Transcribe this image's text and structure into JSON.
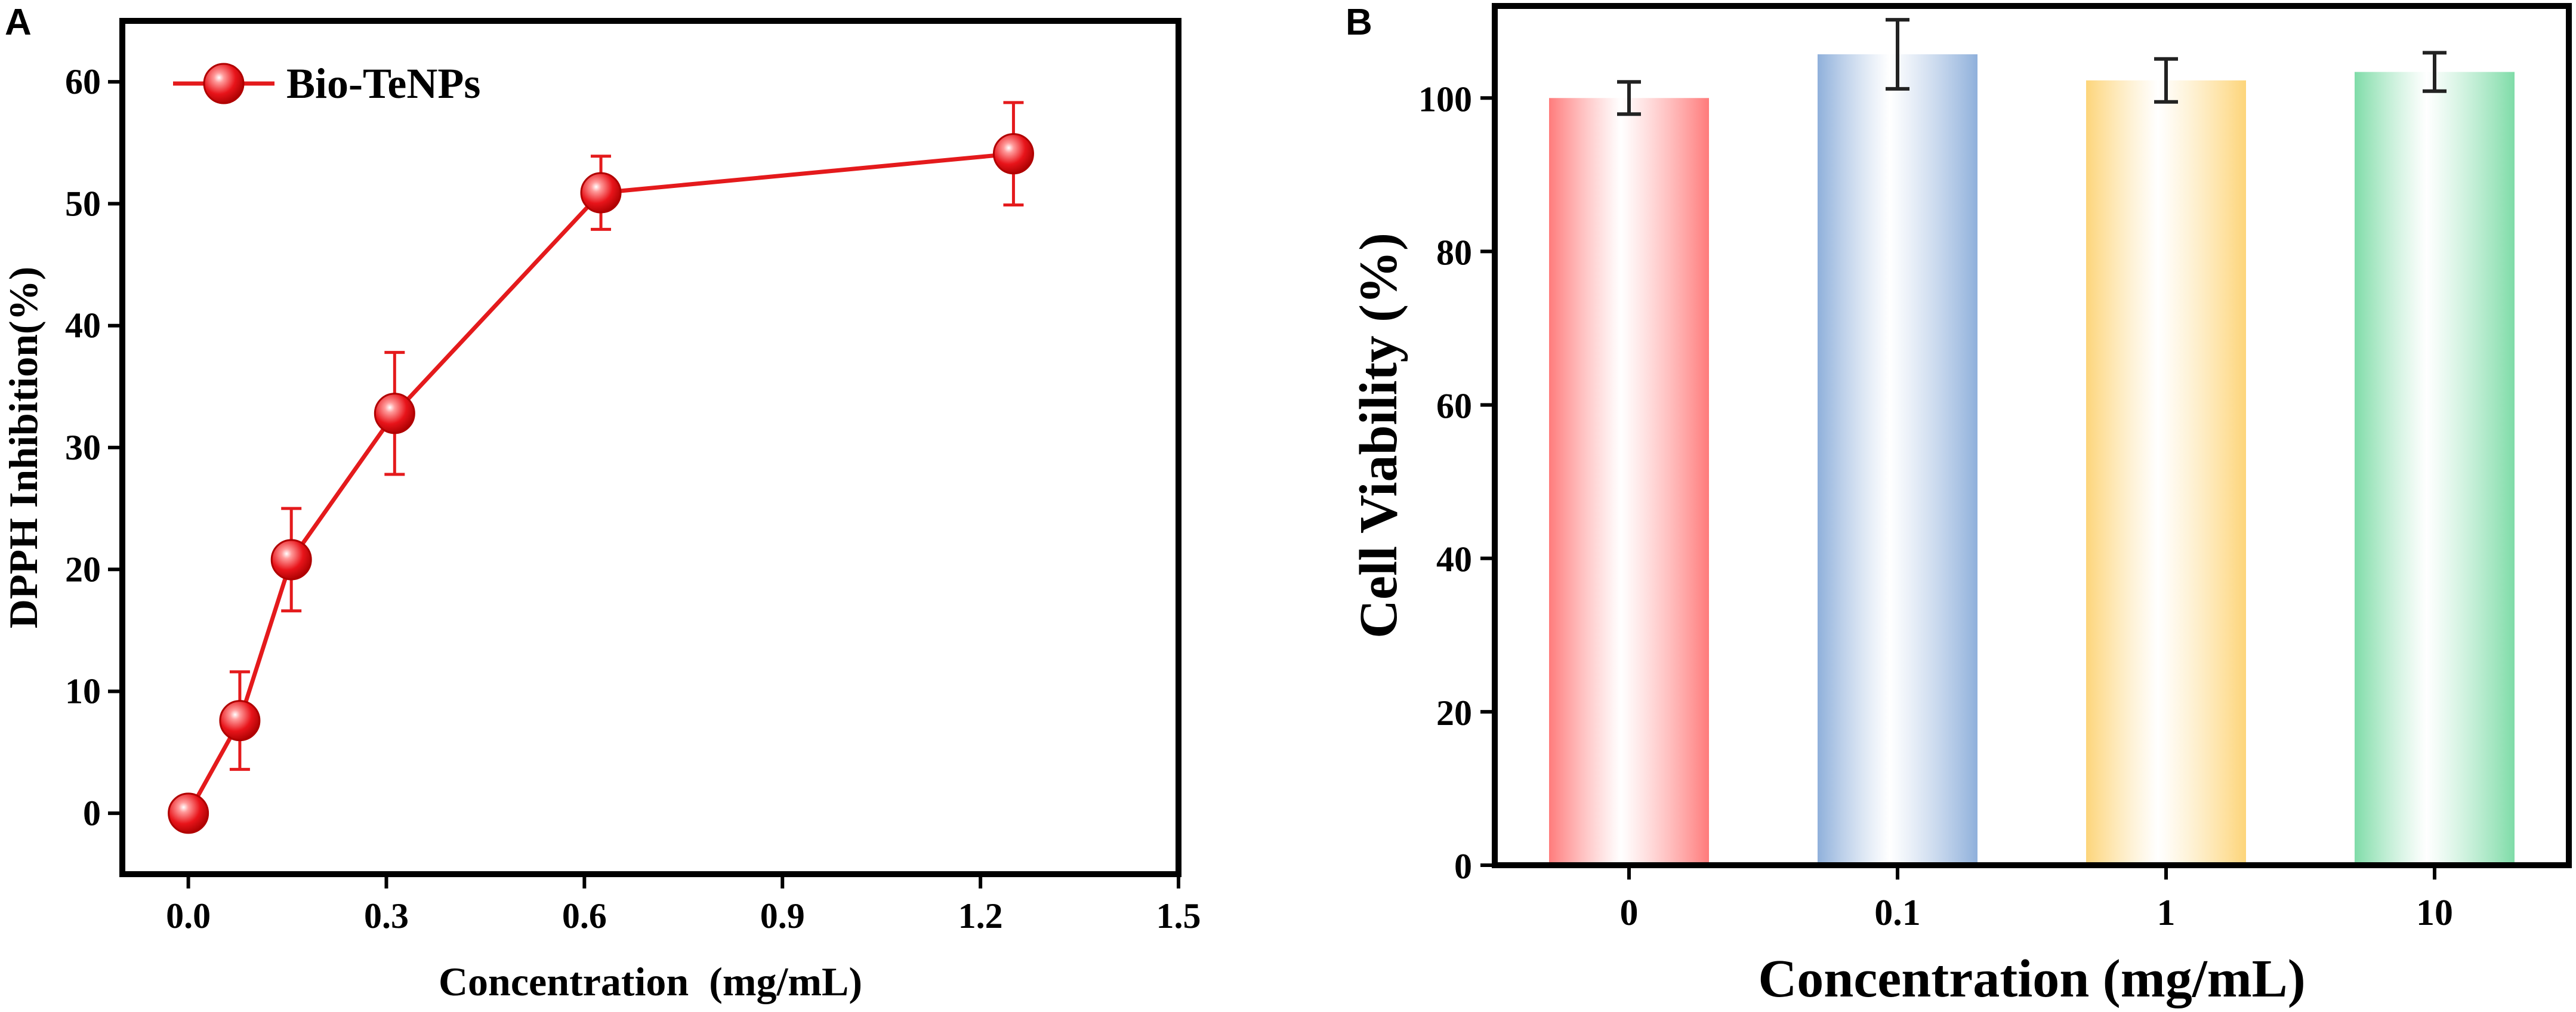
{
  "chart_data": [
    {
      "type": "line",
      "panel_label": "A",
      "x": [
        0,
        0.078,
        0.156,
        0.3125,
        0.625,
        1.25
      ],
      "y": [
        0,
        7.6,
        20.8,
        32.8,
        50.9,
        54.1
      ],
      "error": [
        0,
        4.0,
        4.2,
        5.0,
        3.0,
        4.2
      ],
      "series_name": "Bio-TeNPs",
      "xlabel": "Concentration  (mg/mL)",
      "ylabel": "DPPH Inhibition(%)",
      "xlim": [
        -0.1,
        1.5
      ],
      "ylim": [
        -5,
        65
      ],
      "xticks": [
        0.0,
        0.3,
        0.6,
        0.9,
        1.2,
        1.5
      ],
      "xtick_labels": [
        "0.0",
        "0.3",
        "0.6",
        "0.9",
        "1.2",
        "1.5"
      ],
      "yticks": [
        0,
        10,
        20,
        30,
        40,
        50,
        60
      ],
      "ytick_labels": [
        "0",
        "10",
        "20",
        "30",
        "40",
        "50",
        "60"
      ],
      "color": "#e41a1c",
      "legend_position": "top-left"
    },
    {
      "type": "bar",
      "panel_label": "B",
      "categories": [
        "0",
        "0.1",
        "1",
        "10"
      ],
      "values": [
        100.0,
        105.7,
        102.3,
        103.4
      ],
      "error": [
        2.1,
        4.5,
        2.8,
        2.5
      ],
      "xlabel": "Concentration (mg/mL)",
      "ylabel": "Cell Viability (%)",
      "ylim": [
        0,
        112
      ],
      "yticks": [
        0,
        20,
        40,
        60,
        80,
        100
      ],
      "ytick_labels": [
        "0",
        "20",
        "40",
        "60",
        "80",
        "100"
      ],
      "colors": [
        "#ff7b7b",
        "#8fb0db",
        "#fdd57a",
        "#7fdca8"
      ]
    }
  ]
}
